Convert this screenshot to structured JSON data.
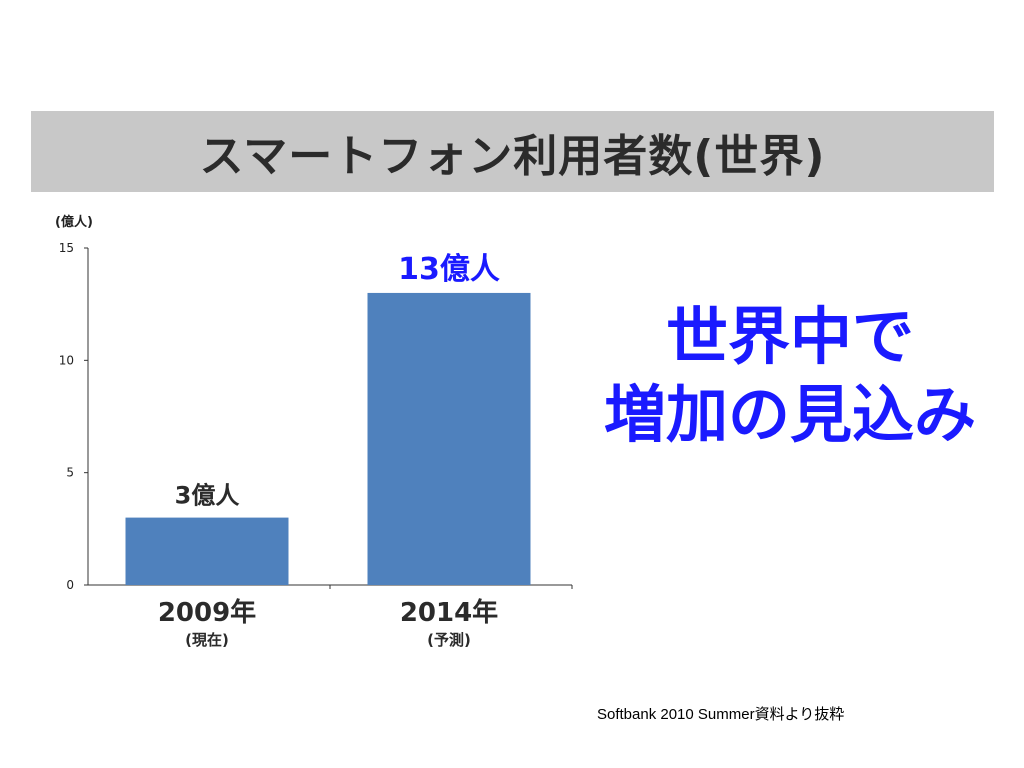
{
  "slide": {
    "title": "スマートフォン利用者数(世界)",
    "callout_line1": "世界中で",
    "callout_line2": "増加の見込み",
    "source": "Softbank 2010 Summer資料より抜粋"
  },
  "chart_data": {
    "type": "bar",
    "title": "スマートフォン利用者数(世界)",
    "ylabel": "(億人)",
    "xlabel": "",
    "ylim": [
      0,
      15
    ],
    "yticks": [
      0,
      5,
      10,
      15
    ],
    "categories": [
      "2009年",
      "2014年"
    ],
    "category_sublabels": [
      "(現在)",
      "(予測)"
    ],
    "values": [
      3,
      13
    ],
    "data_labels": [
      "3億人",
      "13億人"
    ],
    "data_label_colors": [
      "#2b2b2b",
      "#1a1aff"
    ],
    "bar_color": "#4f81bd",
    "grid": false,
    "legend": "none"
  }
}
